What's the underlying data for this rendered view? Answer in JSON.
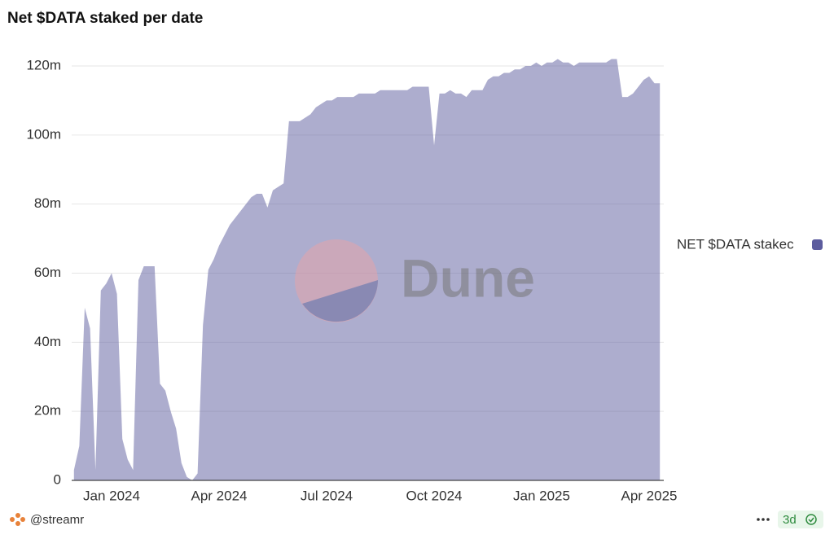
{
  "chart_data": {
    "type": "area",
    "title": "Net $DATA staked per date",
    "watermark": "Dune",
    "categories": [
      null,
      null,
      null,
      null,
      null,
      null,
      null,
      "Jan 2024",
      null,
      null,
      null,
      null,
      null,
      null,
      null,
      null,
      null,
      null,
      null,
      null,
      null,
      null,
      null,
      null,
      null,
      null,
      null,
      "Apr 2024",
      null,
      null,
      null,
      null,
      null,
      null,
      null,
      null,
      null,
      null,
      null,
      null,
      null,
      null,
      null,
      null,
      null,
      null,
      null,
      "Jul 2024",
      null,
      null,
      null,
      null,
      null,
      null,
      null,
      null,
      null,
      null,
      null,
      null,
      null,
      null,
      null,
      null,
      null,
      null,
      null,
      "Oct 2024",
      null,
      null,
      null,
      null,
      null,
      null,
      null,
      null,
      null,
      null,
      null,
      null,
      null,
      null,
      null,
      null,
      null,
      null,
      null,
      "Jan 2025",
      null,
      null,
      null,
      null,
      null,
      null,
      null,
      null,
      null,
      null,
      null,
      null,
      null,
      null,
      null,
      null,
      null,
      null,
      null,
      "Apr 2025",
      null,
      null
    ],
    "series": [
      {
        "name": "NET $DATA stakec",
        "color": "#5c5c9e",
        "values": [
          3000000,
          10000000,
          50000000,
          44000000,
          3000000,
          55000000,
          57000000,
          60000000,
          54000000,
          12000000,
          6000000,
          3000000,
          58000000,
          62000000,
          62000000,
          62000000,
          28000000,
          26000000,
          20000000,
          15000000,
          5000000,
          1000000,
          0,
          2000000,
          45000000,
          61000000,
          64000000,
          68000000,
          71000000,
          74000000,
          76000000,
          78000000,
          80000000,
          82000000,
          83000000,
          83000000,
          79000000,
          84000000,
          85000000,
          86000000,
          104000000,
          104000000,
          104000000,
          105000000,
          106000000,
          108000000,
          109000000,
          110000000,
          110000000,
          111000000,
          111000000,
          111000000,
          111000000,
          112000000,
          112000000,
          112000000,
          112000000,
          113000000,
          113000000,
          113000000,
          113000000,
          113000000,
          113000000,
          114000000,
          114000000,
          114000000,
          114000000,
          97000000,
          112000000,
          112000000,
          113000000,
          112000000,
          112000000,
          111000000,
          113000000,
          113000000,
          113000000,
          116000000,
          117000000,
          117000000,
          118000000,
          118000000,
          119000000,
          119000000,
          120000000,
          120000000,
          121000000,
          120000000,
          121000000,
          121000000,
          122000000,
          121000000,
          121000000,
          120000000,
          121000000,
          121000000,
          121000000,
          121000000,
          121000000,
          121000000,
          122000000,
          122000000,
          111000000,
          111000000,
          112000000,
          114000000,
          116000000,
          117000000,
          115000000,
          115000000
        ]
      }
    ],
    "ylim": [
      0,
      120000000
    ],
    "yticks": [
      0,
      {
        "value": 20000000,
        "label": "20m"
      },
      {
        "value": 40000000,
        "label": "40m"
      },
      {
        "value": 60000000,
        "label": "60m"
      },
      {
        "value": 80000000,
        "label": "80m"
      },
      {
        "value": 100000000,
        "label": "100m"
      },
      {
        "value": 120000000,
        "label": "120m"
      }
    ],
    "grid": true,
    "legend": "right",
    "footer": {
      "author": "@streamr",
      "refresh": "3d"
    }
  }
}
